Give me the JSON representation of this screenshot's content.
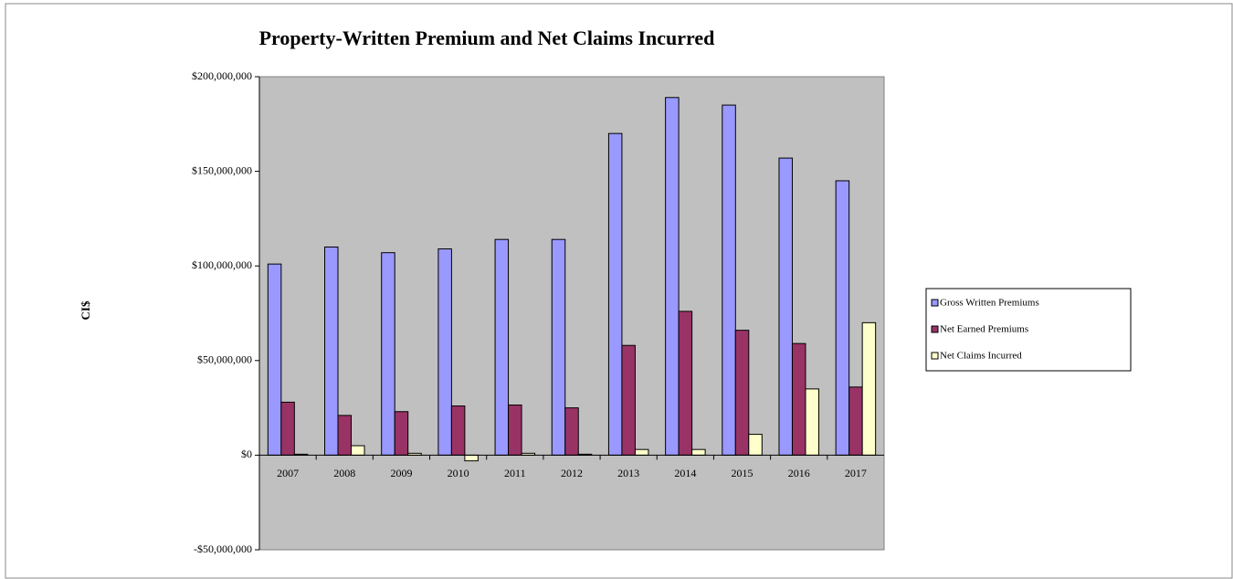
{
  "chart_data": {
    "type": "bar",
    "title": "Property-Written Premium and Net Claims Incurred",
    "y_label": "CI$",
    "categories": [
      "2007",
      "2008",
      "2009",
      "2010",
      "2011",
      "2012",
      "2013",
      "2014",
      "2015",
      "2016",
      "2017"
    ],
    "series": [
      {
        "name": "Gross Written Premiums",
        "color": "#9999ff",
        "values": [
          101000000,
          110000000,
          107000000,
          109000000,
          114000000,
          114000000,
          170000000,
          189000000,
          185000000,
          157000000,
          145000000
        ]
      },
      {
        "name": "Net Earned Premiums",
        "color": "#993366",
        "values": [
          28000000,
          21000000,
          23000000,
          26000000,
          26500000,
          25000000,
          58000000,
          76000000,
          66000000,
          59000000,
          36000000
        ]
      },
      {
        "name": "Net Claims Incurred",
        "color": "#ffffcc",
        "values": [
          500000,
          5000000,
          1000000,
          -3000000,
          1000000,
          500000,
          3000000,
          3000000,
          11000000,
          35000000,
          70000000
        ]
      }
    ],
    "ylim": [
      -50000000,
      200000000
    ],
    "yticks": [
      {
        "value": -50000000,
        "label": "-$50,000,000"
      },
      {
        "value": 0,
        "label": "$0"
      },
      {
        "value": 50000000,
        "label": "$50,000,000"
      },
      {
        "value": 100000000,
        "label": "$100,000,000"
      },
      {
        "value": 150000000,
        "label": "$150,000,000"
      },
      {
        "value": 200000000,
        "label": "$200,000,000"
      }
    ],
    "plot_background": "#c0c0c0",
    "legend": "right"
  }
}
